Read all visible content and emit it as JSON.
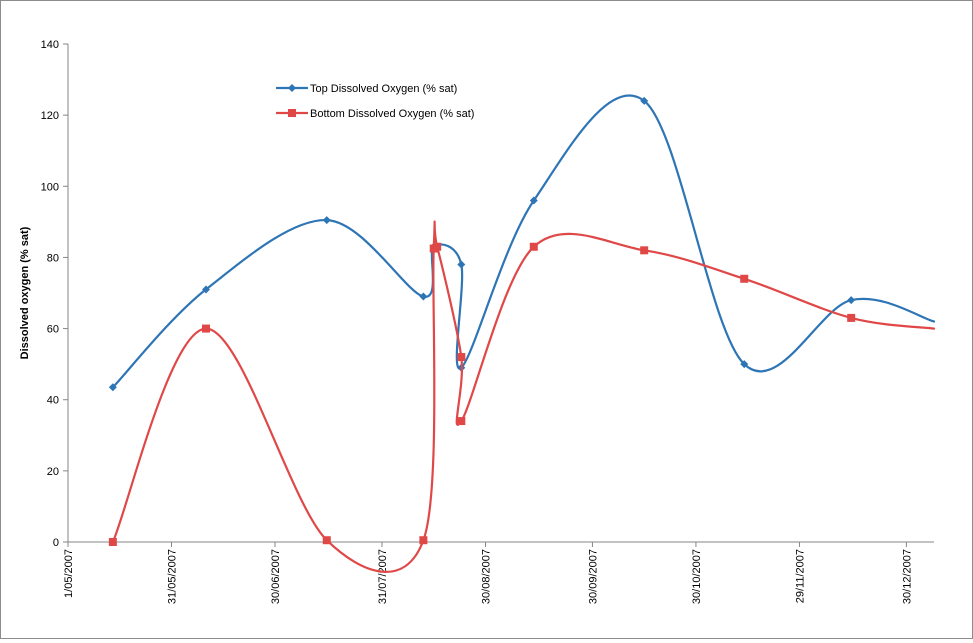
{
  "chart_data": {
    "type": "line",
    "title": "",
    "xlabel": "",
    "ylabel": "Dissolved oxygen (% sat)",
    "ylim": [
      0,
      140
    ],
    "y_ticks": [
      "0",
      "20",
      "40",
      "60",
      "80",
      "100",
      "120",
      "140"
    ],
    "x_ticks": [
      "1/05/2007",
      "31/05/2007",
      "30/06/2007",
      "31/07/2007",
      "30/08/2007",
      "30/09/2007",
      "30/10/2007",
      "29/11/2007",
      "30/12/2007"
    ],
    "x_range": [
      "2007-05-01",
      "2008-01-07"
    ],
    "grid": false,
    "smoothed": true,
    "legend_position": "top-left",
    "series": [
      {
        "name": "Top Dissolved Oxygen (% sat)",
        "color": "#2e75b6",
        "marker": "diamond",
        "points": [
          {
            "x": "2007-05-14",
            "y": 43.5
          },
          {
            "x": "2007-06-10",
            "y": 71
          },
          {
            "x": "2007-07-15",
            "y": 90.5
          },
          {
            "x": "2007-08-12",
            "y": 69
          },
          {
            "x": "2007-08-15",
            "y": 83
          },
          {
            "x": "2007-08-23",
            "y": 78
          },
          {
            "x": "2007-08-23",
            "y": 49
          },
          {
            "x": "2007-09-13",
            "y": 96
          },
          {
            "x": "2007-10-15",
            "y": 124
          },
          {
            "x": "2007-11-13",
            "y": 50
          },
          {
            "x": "2007-12-14",
            "y": 68
          },
          {
            "x": "2008-01-07",
            "y": 62
          }
        ]
      },
      {
        "name": "Bottom Dissolved Oxygen (% sat)",
        "color": "#e04848",
        "marker": "square",
        "points": [
          {
            "x": "2007-05-14",
            "y": 0
          },
          {
            "x": "2007-06-10",
            "y": 60
          },
          {
            "x": "2007-07-15",
            "y": 0.5
          },
          {
            "x": "2007-08-12",
            "y": 0.5
          },
          {
            "x": "2007-08-15",
            "y": 82.5
          },
          {
            "x": "2007-08-16",
            "y": 83
          },
          {
            "x": "2007-08-23",
            "y": 52
          },
          {
            "x": "2007-08-23",
            "y": 34
          },
          {
            "x": "2007-09-13",
            "y": 83
          },
          {
            "x": "2007-10-15",
            "y": 82
          },
          {
            "x": "2007-11-13",
            "y": 74
          },
          {
            "x": "2007-12-14",
            "y": 63
          },
          {
            "x": "2008-01-07",
            "y": 60
          }
        ]
      }
    ]
  }
}
